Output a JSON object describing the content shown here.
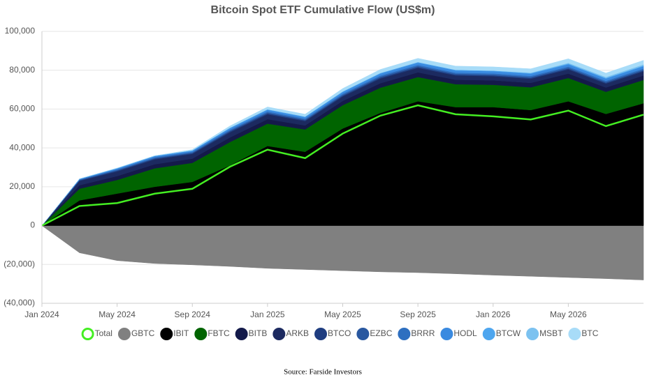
{
  "chart_data": {
    "type": "stacked-area",
    "title": "Bitcoin Spot ETF Cumulative Flow (US$m)",
    "source": "Source: Farside Investors",
    "categories": [
      "Jan 2024",
      null,
      "May 2024",
      null,
      "Sep 2024",
      null,
      "Jan 2025",
      null,
      "May 2025",
      null,
      "Sep 2025",
      null,
      "Jan 2026",
      null,
      "May 2026",
      null,
      null
    ],
    "ylim": [
      -40000,
      100000
    ],
    "yticks": [
      {
        "value": -40000,
        "label": "(40,000)"
      },
      {
        "value": -20000,
        "label": "(20,000)"
      },
      0,
      {
        "value": 20000,
        "label": "20,000"
      },
      {
        "value": 40000,
        "label": "40,000"
      },
      {
        "value": 60000,
        "label": "60,000"
      },
      {
        "value": 80000,
        "label": "80,000"
      },
      {
        "value": 100000,
        "label": "100,000"
      }
    ],
    "grid": true,
    "legend": "bottom",
    "total": {
      "name": "Total",
      "color": "#44ee22",
      "values": [
        0,
        10100,
        11600,
        16450,
        18950,
        30300,
        39100,
        34750,
        47390,
        56600,
        61920,
        57330,
        56230,
        54630,
        59210,
        51230,
        57110
      ]
    },
    "series": [
      {
        "name": "GBTC",
        "color": "#808080",
        "values": [
          0,
          -14000,
          -18000,
          -19500,
          -20200,
          -21000,
          -22000,
          -22600,
          -23200,
          -23800,
          -24200,
          -24800,
          -25500,
          -26100,
          -26700,
          -27300,
          -28000
        ]
      },
      {
        "name": "IBIT",
        "color": "#000000",
        "values": [
          0,
          13000,
          16500,
          20000,
          22500,
          31000,
          41000,
          38000,
          50000,
          58000,
          64000,
          61000,
          61000,
          59500,
          64000,
          57500,
          63000
        ]
      },
      {
        "name": "FBTC",
        "color": "#006400",
        "values": [
          0,
          6000,
          7000,
          9500,
          9800,
          12000,
          11500,
          11500,
          12000,
          13000,
          12500,
          11800,
          11500,
          11700,
          12000,
          11400,
          12000
        ]
      },
      {
        "name": "BITB",
        "color": "#141a4a",
        "values": [
          0,
          1800,
          2000,
          2100,
          2200,
          2400,
          2300,
          2100,
          2200,
          2300,
          2400,
          2300,
          2300,
          2300,
          2300,
          2200,
          2300
        ]
      },
      {
        "name": "ARKB",
        "color": "#1c2a60",
        "values": [
          0,
          2200,
          2400,
          2500,
          2400,
          2600,
          2500,
          2200,
          2300,
          2400,
          2300,
          2200,
          2100,
          2100,
          2100,
          2000,
          2100
        ]
      },
      {
        "name": "BTCO",
        "color": "#1f3d80",
        "values": [
          0,
          300,
          400,
          400,
          400,
          500,
          500,
          400,
          450,
          500,
          500,
          450,
          450,
          450,
          450,
          450,
          450
        ]
      },
      {
        "name": "EZBC",
        "color": "#2a58a0",
        "values": [
          0,
          200,
          300,
          300,
          300,
          400,
          450,
          400,
          450,
          500,
          500,
          480,
          480,
          480,
          490,
          480,
          490
        ]
      },
      {
        "name": "BRRR",
        "color": "#2e6fc0",
        "values": [
          0,
          300,
          400,
          450,
          450,
          500,
          550,
          500,
          520,
          550,
          560,
          550,
          550,
          550,
          560,
          550,
          560
        ]
      },
      {
        "name": "HODL",
        "color": "#3a8ae0",
        "values": [
          0,
          200,
          400,
          500,
          500,
          700,
          800,
          750,
          850,
          1000,
          1100,
          1100,
          1100,
          1100,
          1150,
          1100,
          1150
        ]
      },
      {
        "name": "BTCW",
        "color": "#4ea6ef",
        "values": [
          0,
          100,
          200,
          200,
          200,
          300,
          300,
          300,
          320,
          350,
          360,
          350,
          350,
          350,
          360,
          350,
          360
        ]
      },
      {
        "name": "MSBT",
        "color": "#7cc2f0",
        "values": [
          0,
          0,
          0,
          0,
          0,
          0,
          0,
          0,
          0,
          0,
          0,
          0,
          0,
          200,
          400,
          500,
          600
        ]
      },
      {
        "name": "BTC",
        "color": "#a8dcf8",
        "values": [
          0,
          0,
          0,
          0,
          400,
          900,
          1200,
          1200,
          1500,
          1800,
          1900,
          1900,
          1900,
          2000,
          2100,
          2000,
          2100
        ]
      }
    ]
  }
}
